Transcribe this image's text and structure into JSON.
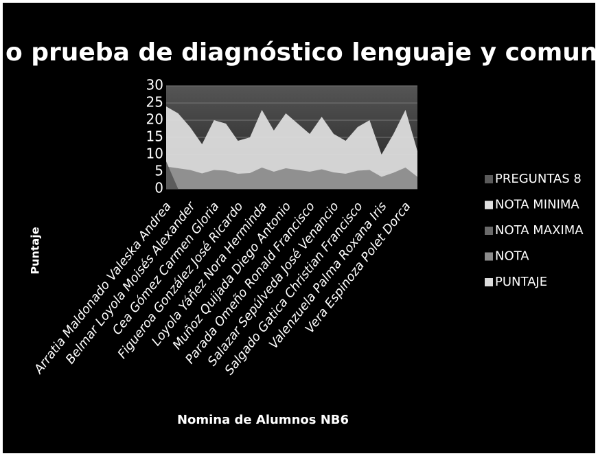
{
  "chart_data": {
    "type": "area",
    "title": "o prueba de diagnóstico lenguaje y comunicac",
    "x_label": "Nomina de Alumnos NB6",
    "y_label": "Puntaje",
    "categories": [
      "Arratia Maldonado Valeska Andrea",
      null,
      "Belmar Loyola Moisés Alexander",
      null,
      "Cea Gómez Carmen Gloria",
      null,
      "Figueroa González José Ricardo",
      null,
      "Loyola Yáñez Nora Herminda",
      null,
      "Muñoz Quijada Diego Antonio",
      null,
      "Parada Omeño Ronald Francisco",
      null,
      "Salazar Sepúlveda José Venancio",
      null,
      "Salgado Gatica Christian Francisco",
      null,
      "Valenzuela Palma Roxana Iris",
      null,
      "Vera Espinoza Polet Dorca",
      null
    ],
    "series": [
      {
        "name": "PREGUNTAS 8",
        "color": "#5a5a5a",
        "values": [
          8,
          0,
          null,
          null,
          null,
          null,
          null,
          null,
          null,
          null,
          null,
          null,
          null,
          null,
          null,
          null,
          null,
          null,
          null,
          null,
          null,
          null
        ]
      },
      {
        "name": "NOTA MINIMA",
        "color": "#e0e0e0",
        "values": [
          null,
          null,
          null,
          null,
          null,
          null,
          null,
          null,
          null,
          null,
          null,
          null,
          null,
          null,
          null,
          null,
          null,
          null,
          null,
          null,
          null,
          null
        ]
      },
      {
        "name": "NOTA MAXIMA",
        "color": "#6a6a6a",
        "values": [
          null,
          null,
          null,
          null,
          null,
          null,
          null,
          null,
          null,
          null,
          null,
          null,
          null,
          null,
          null,
          null,
          null,
          null,
          null,
          null,
          null,
          null
        ]
      },
      {
        "name": "NOTA",
        "color": "#8c8c8c",
        "values": [
          6.5,
          6,
          5.5,
          4.5,
          5.5,
          5.3,
          4.4,
          4.6,
          6.2,
          5,
          6,
          5.5,
          5,
          5.7,
          4.8,
          4.4,
          5.3,
          5.5,
          3.5,
          4.7,
          6.2,
          3.5
        ]
      },
      {
        "name": "PUNTAJE",
        "color": "#dcdcdc",
        "values": [
          24,
          22,
          18,
          13,
          20,
          19,
          14,
          15,
          23,
          17,
          22,
          19,
          16,
          21,
          16,
          14,
          18,
          20,
          10,
          16,
          23,
          11
        ]
      }
    ],
    "ylim": [
      0,
      30
    ],
    "yticks": [
      0,
      5,
      10,
      15,
      20,
      25,
      30
    ],
    "grid": true,
    "legend": "right"
  }
}
